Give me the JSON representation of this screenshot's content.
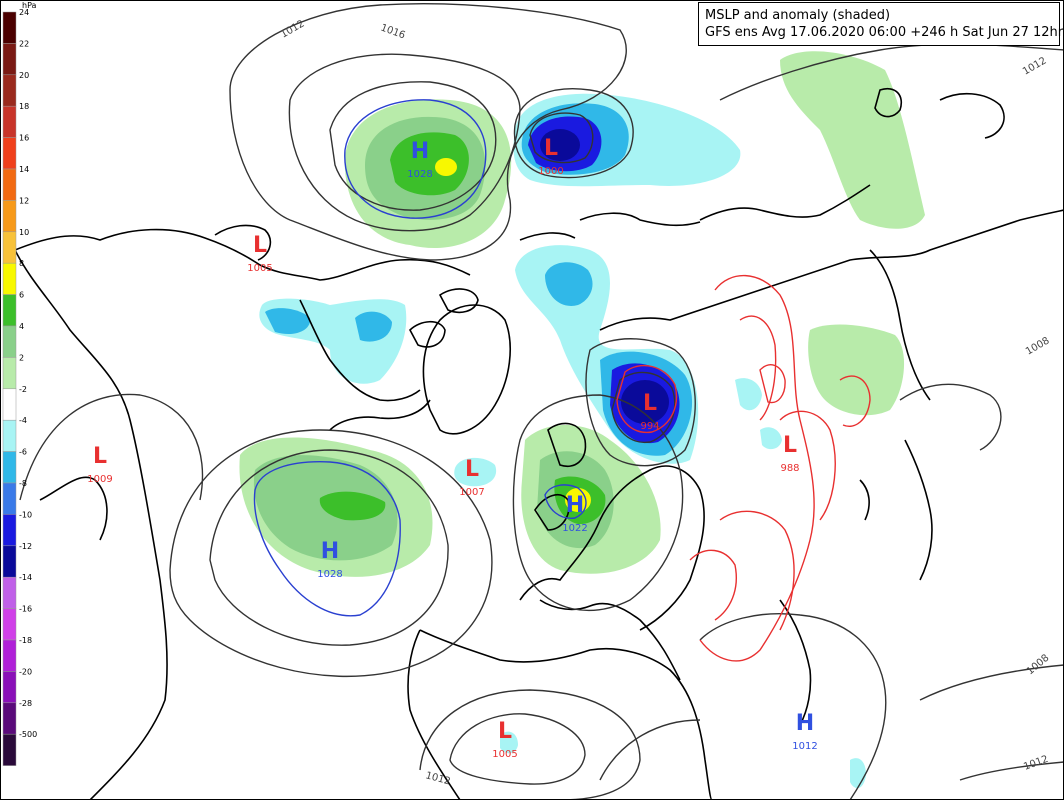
{
  "title": {
    "line1": "MSLP and anomaly (shaded)",
    "line2": "GFS ens Avg 17.06.2020 06:00 +246 h Sat Jun 27 12hrs"
  },
  "legend": {
    "unit": "hPa",
    "bins": [
      {
        "label": "24",
        "color": "#4b0000"
      },
      {
        "label": "22",
        "color": "#7a1a14"
      },
      {
        "label": "20",
        "color": "#9a2a1e"
      },
      {
        "label": "18",
        "color": "#c8342a"
      },
      {
        "label": "16",
        "color": "#f0401c"
      },
      {
        "label": "14",
        "color": "#f26a12"
      },
      {
        "label": "12",
        "color": "#f79a1a"
      },
      {
        "label": "10",
        "color": "#f8c23a"
      },
      {
        "label": "8",
        "color": "#f8f800"
      },
      {
        "label": "6",
        "color": "#3cbf2a"
      },
      {
        "label": "4",
        "color": "#8ad08a"
      },
      {
        "label": "2",
        "color": "#b8ebaa"
      },
      {
        "label": "-2",
        "color": "#ffffff"
      },
      {
        "label": "-4",
        "color": "#a8f4f4"
      },
      {
        "label": "-6",
        "color": "#30b8e8"
      },
      {
        "label": "-8",
        "color": "#3a7ae8"
      },
      {
        "label": "-10",
        "color": "#1a1ae0"
      },
      {
        "label": "-12",
        "color": "#0a0a9a"
      },
      {
        "label": "-14",
        "color": "#c060e8"
      },
      {
        "label": "-16",
        "color": "#d040e8"
      },
      {
        "label": "-18",
        "color": "#b020d8"
      },
      {
        "label": "-20",
        "color": "#8a10b8"
      },
      {
        "label": "-28",
        "color": "#5a0a7a"
      },
      {
        "label": "-500",
        "color": "#2a0a3a"
      }
    ]
  },
  "systems": [
    {
      "kind": "H",
      "value": "1028",
      "color": "#3050e0"
    },
    {
      "kind": "L",
      "value": "1000",
      "color": "#e83030"
    },
    {
      "kind": "L",
      "value": "1005",
      "color": "#e83030"
    },
    {
      "kind": "L",
      "value": "1009",
      "color": "#e83030"
    },
    {
      "kind": "H",
      "value": "1028",
      "color": "#3050e0"
    },
    {
      "kind": "L",
      "value": "1007",
      "color": "#e83030"
    },
    {
      "kind": "H",
      "value": "1022",
      "color": "#3050e0"
    },
    {
      "kind": "L",
      "value": "994",
      "color": "#e83030"
    },
    {
      "kind": "L",
      "value": "988",
      "color": "#e83030"
    },
    {
      "kind": "L",
      "value": "1005",
      "color": "#e83030"
    },
    {
      "kind": "H",
      "value": "1012",
      "color": "#3050e0"
    }
  ],
  "isobar_labels": [
    "1012",
    "1016",
    "1012",
    "1008",
    "1008",
    "1012",
    "1012"
  ]
}
